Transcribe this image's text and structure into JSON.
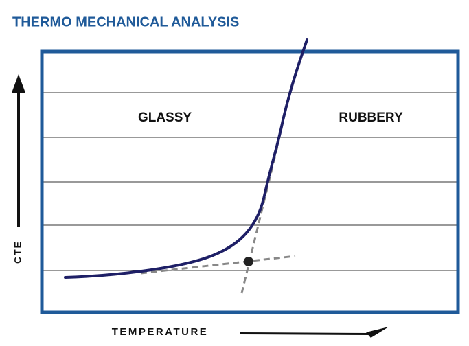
{
  "title": "THERMO MECHANICAL ANALYSIS",
  "regions": {
    "left": "GLASSY",
    "right": "RUBBERY"
  },
  "axes": {
    "y": "CTE",
    "x": "TEMPERATURE"
  }
}
